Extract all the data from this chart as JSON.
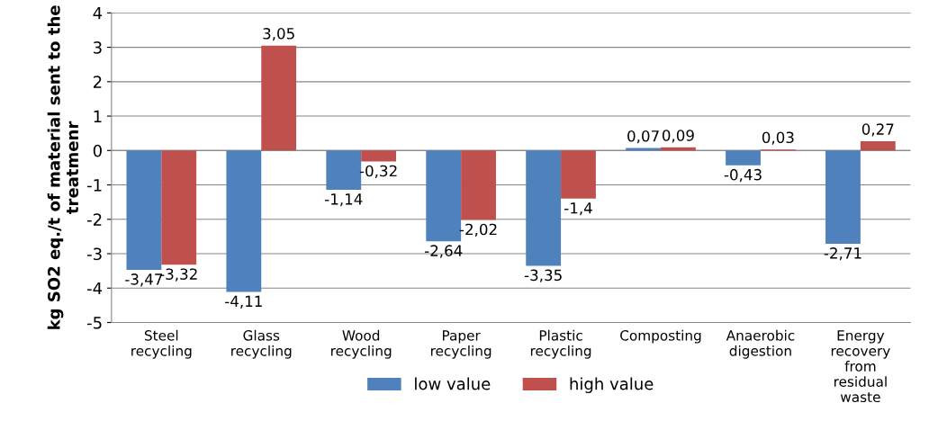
{
  "chart_data": {
    "type": "bar",
    "ylabel": "kg SO2 eq./t of material sent to the treatmenr",
    "categories": [
      "Steel recycling",
      "Glass recycling",
      "Wood recycling",
      "Paper recycling",
      "Plastic recycling",
      "Composting",
      "Anaerobic digestion",
      "Energy recovery from residual waste"
    ],
    "series": [
      {
        "name": "low value",
        "color": "#4f81bd",
        "values": [
          -3.47,
          -4.11,
          -1.14,
          -2.64,
          -3.35,
          0.07,
          -0.43,
          -2.71
        ],
        "value_labels": [
          "-3,47",
          "-4,11",
          "-1,14",
          "-2,64",
          "-3,35",
          "0,07",
          "-0,43",
          "-2,71"
        ]
      },
      {
        "name": "high value",
        "color": "#c0504d",
        "values": [
          -3.32,
          3.05,
          -0.32,
          -2.02,
          -1.4,
          0.09,
          0.03,
          0.27
        ],
        "value_labels": [
          "-3,32",
          "3,05",
          "-0,32",
          "-2,02",
          "-1,4",
          "0,09",
          "0,03",
          "0,27"
        ]
      }
    ],
    "ylim": [
      -5,
      4
    ],
    "yticks": [
      -5,
      -4,
      -3,
      -2,
      -1,
      0,
      1,
      2,
      3,
      4
    ],
    "grid": "y",
    "legend": "bottom"
  }
}
